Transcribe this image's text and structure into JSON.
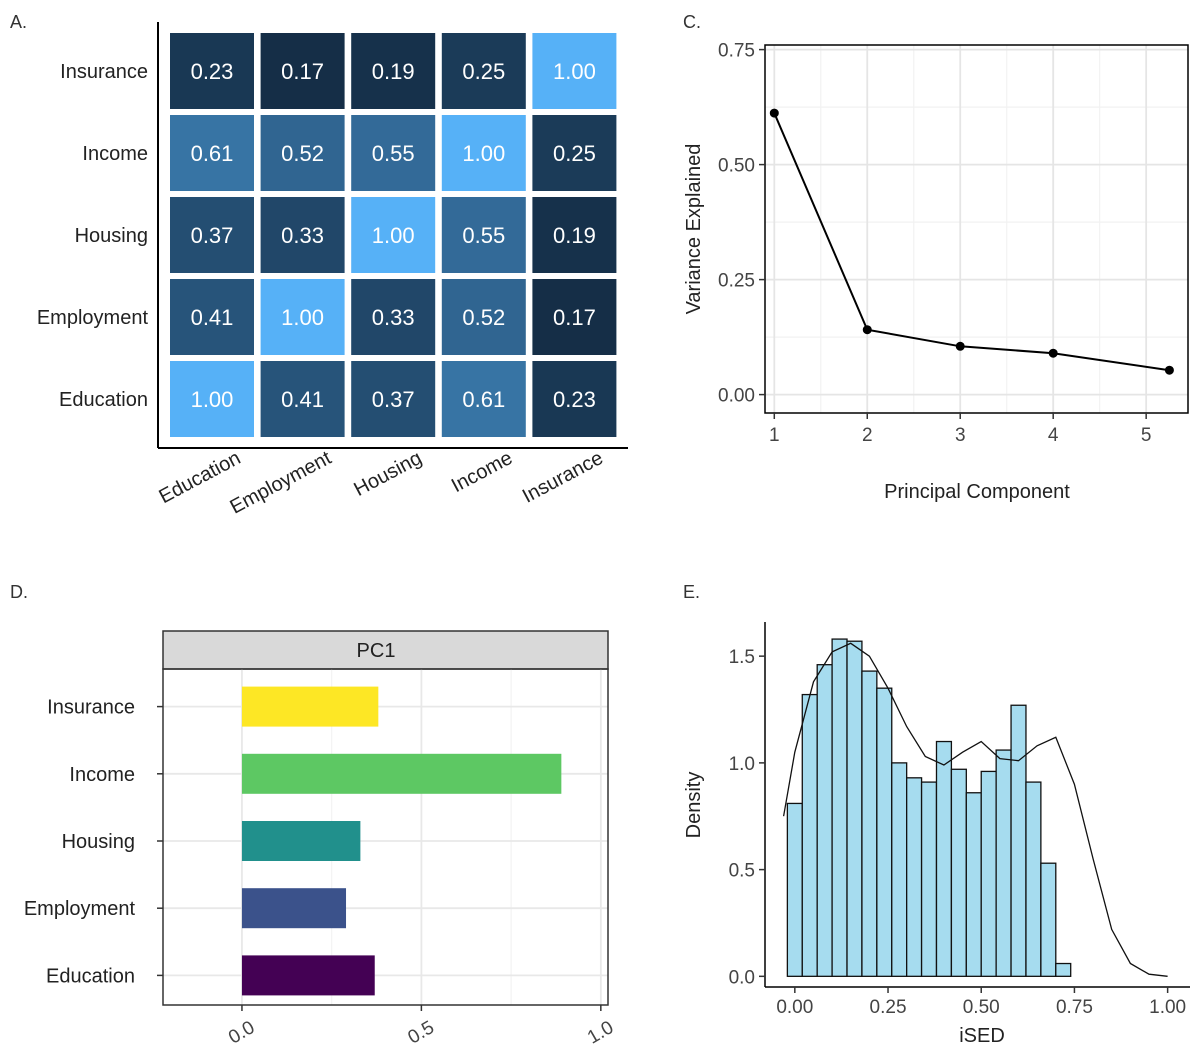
{
  "chart_data": [
    {
      "panel": "A.",
      "type": "heatmap",
      "rows": [
        "Insurance",
        "Income",
        "Housing",
        "Employment",
        "Education"
      ],
      "cols": [
        "Education",
        "Employment",
        "Housing",
        "Income",
        "Insurance"
      ],
      "values": [
        [
          0.23,
          0.17,
          0.19,
          0.25,
          1.0
        ],
        [
          0.61,
          0.52,
          0.55,
          1.0,
          0.25
        ],
        [
          0.37,
          0.33,
          1.0,
          0.55,
          0.19
        ],
        [
          0.41,
          1.0,
          0.33,
          0.52,
          0.17
        ],
        [
          1.0,
          0.41,
          0.37,
          0.61,
          0.23
        ]
      ],
      "labels": [
        [
          "0.23",
          "0.17",
          "0.19",
          "0.25",
          "1.00"
        ],
        [
          "0.61",
          "0.52",
          "0.55",
          "1.00",
          "0.25"
        ],
        [
          "0.37",
          "0.33",
          "1.00",
          "0.55",
          "0.19"
        ],
        [
          "0.41",
          "1.00",
          "0.33",
          "0.52",
          "0.17"
        ],
        [
          "1.00",
          "0.41",
          "0.37",
          "0.61",
          "0.23"
        ]
      ],
      "colors": {
        "low": "#132B43",
        "high": "#56B1F7"
      },
      "vmin": 0.15,
      "vmax": 1.0
    },
    {
      "panel": "C.",
      "type": "line",
      "x": [
        1,
        2,
        3,
        4,
        5
      ],
      "y": [
        0.612,
        0.141,
        0.105,
        0.09,
        0.053
      ],
      "xlabel": "Principal Component",
      "ylabel": "Variance Explained",
      "xlim": [
        0.9,
        5.45
      ],
      "ylim": [
        -0.04,
        0.76
      ],
      "xticks": [
        "1",
        "2",
        "3",
        "4",
        "5"
      ],
      "yticks": [
        "0.00",
        "0.25",
        "0.50",
        "0.75"
      ],
      "ytick_values": [
        0,
        0.25,
        0.5,
        0.75
      ],
      "grid": true
    },
    {
      "panel": "D.",
      "type": "bar",
      "orientation": "horizontal",
      "facet": "PC1",
      "categories": [
        "Insurance",
        "Income",
        "Housing",
        "Employment",
        "Education"
      ],
      "values": [
        0.38,
        0.89,
        0.33,
        0.29,
        0.37
      ],
      "colors": [
        "#FDE725",
        "#5DC863",
        "#21908C",
        "#3B528B",
        "#440154"
      ],
      "xlim": [
        -0.22,
        1.02
      ],
      "xticks": [
        "0.0",
        "0.5",
        "1.0"
      ],
      "xtick_values": [
        0,
        0.5,
        1.0
      ]
    },
    {
      "panel": "E.",
      "type": "bar",
      "subtype": "histogram",
      "bin_width": 0.04,
      "bin_start": -0.04,
      "values": [
        0.81,
        1.32,
        1.46,
        1.58,
        1.57,
        1.43,
        1.35,
        1.0,
        0.93,
        0.91,
        1.1,
        0.97,
        0.86,
        0.96,
        1.06,
        1.27,
        0.91,
        0.53,
        0.06
      ],
      "density_x": [
        -0.03,
        0.0,
        0.05,
        0.1,
        0.15,
        0.2,
        0.25,
        0.3,
        0.35,
        0.4,
        0.45,
        0.5,
        0.55,
        0.6,
        0.65,
        0.7,
        0.75,
        0.8,
        0.85,
        0.9,
        0.95,
        1.0
      ],
      "density_y": [
        0.75,
        1.05,
        1.38,
        1.52,
        1.56,
        1.5,
        1.35,
        1.17,
        1.03,
        0.99,
        1.05,
        1.1,
        1.02,
        1.01,
        1.08,
        1.12,
        0.9,
        0.55,
        0.22,
        0.06,
        0.01,
        0.0
      ],
      "xlabel": "iSED",
      "ylabel": "Density",
      "xlim": [
        -0.08,
        1.06
      ],
      "ylim": [
        -0.05,
        1.66
      ],
      "xticks": [
        "0.00",
        "0.25",
        "0.50",
        "0.75",
        "1.00"
      ],
      "xtick_values": [
        0,
        0.25,
        0.5,
        0.75,
        1.0
      ],
      "yticks": [
        "0.0",
        "0.5",
        "1.0",
        "1.5"
      ],
      "ytick_values": [
        0,
        0.5,
        1.0,
        1.5
      ],
      "fill": "#A6DCEF"
    }
  ]
}
